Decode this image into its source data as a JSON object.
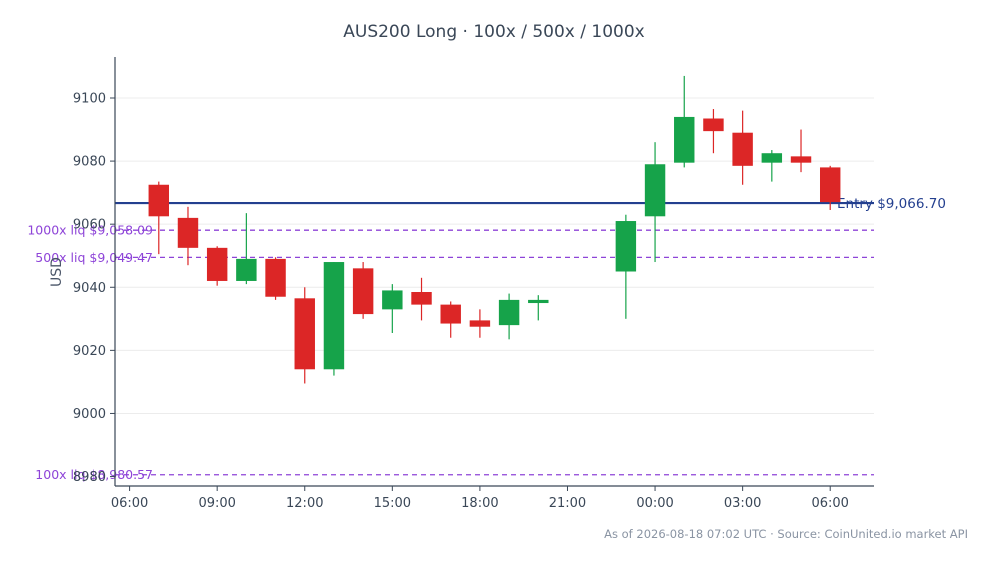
{
  "chart_data": {
    "type": "candlestick",
    "title": "AUS200 Long · 100x / 500x / 1000x",
    "ylabel": "USD",
    "ylim": [
      8977,
      9113
    ],
    "y_ticks": [
      9000,
      9020,
      9040,
      9060,
      9080,
      9100
    ],
    "x_labels": [
      "06:00",
      "09:00",
      "12:00",
      "15:00",
      "18:00",
      "21:00",
      "00:00",
      "03:00",
      "06:00"
    ],
    "x_label_hours": [
      6,
      9,
      12,
      15,
      18,
      21,
      24,
      27,
      30
    ],
    "xlim_hours": [
      5.5,
      31.5
    ],
    "grid": true,
    "colors": {
      "up": "#16a34a",
      "down": "#dc2626",
      "entry": "#233f8f",
      "liq": "#8e44d8"
    },
    "candles": [
      {
        "t": 7,
        "o": 9072.5,
        "h": 9073.5,
        "l": 9050.5,
        "c": 9062.5
      },
      {
        "t": 8,
        "o": 9062,
        "h": 9065.5,
        "l": 9047,
        "c": 9052.5
      },
      {
        "t": 9,
        "o": 9052.5,
        "h": 9053,
        "l": 9040.5,
        "c": 9042
      },
      {
        "t": 10,
        "o": 9042,
        "h": 9063.5,
        "l": 9041,
        "c": 9049
      },
      {
        "t": 11,
        "o": 9049,
        "h": 9049.5,
        "l": 9036,
        "c": 9037
      },
      {
        "t": 12,
        "o": 9036.5,
        "h": 9040,
        "l": 9009.5,
        "c": 9014
      },
      {
        "t": 13,
        "o": 9014,
        "h": 9048,
        "l": 9012,
        "c": 9048
      },
      {
        "t": 14,
        "o": 9046,
        "h": 9048,
        "l": 9030,
        "c": 9031.5
      },
      {
        "t": 15,
        "o": 9033,
        "h": 9041,
        "l": 9025.5,
        "c": 9039
      },
      {
        "t": 16,
        "o": 9038.5,
        "h": 9043,
        "l": 9029.5,
        "c": 9034.5
      },
      {
        "t": 17,
        "o": 9034.5,
        "h": 9035.5,
        "l": 9024,
        "c": 9028.5
      },
      {
        "t": 18,
        "o": 9029.5,
        "h": 9033,
        "l": 9024,
        "c": 9027.5
      },
      {
        "t": 19,
        "o": 9028,
        "h": 9038,
        "l": 9023.5,
        "c": 9036
      },
      {
        "t": 20,
        "o": 9035,
        "h": 9037.5,
        "l": 9029.5,
        "c": 9036
      },
      {
        "t": 23,
        "o": 9045,
        "h": 9063,
        "l": 9030,
        "c": 9061
      },
      {
        "t": 24,
        "o": 9062.5,
        "h": 9086,
        "l": 9048,
        "c": 9079
      },
      {
        "t": 25,
        "o": 9079.5,
        "h": 9107,
        "l": 9078,
        "c": 9094
      },
      {
        "t": 26,
        "o": 9093.5,
        "h": 9096.5,
        "l": 9082.5,
        "c": 9089.5
      },
      {
        "t": 27,
        "o": 9089,
        "h": 9096,
        "l": 9072.5,
        "c": 9078.5
      },
      {
        "t": 28,
        "o": 9079.5,
        "h": 9083.5,
        "l": 9073.5,
        "c": 9082.5
      },
      {
        "t": 29,
        "o": 9081.5,
        "h": 9090,
        "l": 9076.5,
        "c": 9079.5
      },
      {
        "t": 30,
        "o": 9078,
        "h": 9078.5,
        "l": 9064.5,
        "c": 9067
      }
    ],
    "entry": {
      "value": 9066.7,
      "label": "Entry $9,066.70"
    },
    "liquidations": [
      {
        "value": 9058.09,
        "label": "1000x liq $9,058.09"
      },
      {
        "value": 9049.47,
        "label": "500x liq $9,049.47"
      },
      {
        "value": 8980.57,
        "label": "100x liq $8,980.57"
      }
    ]
  },
  "footer": "As of 2026-08-18 07:02 UTC · Source: CoinUnited.io market API"
}
